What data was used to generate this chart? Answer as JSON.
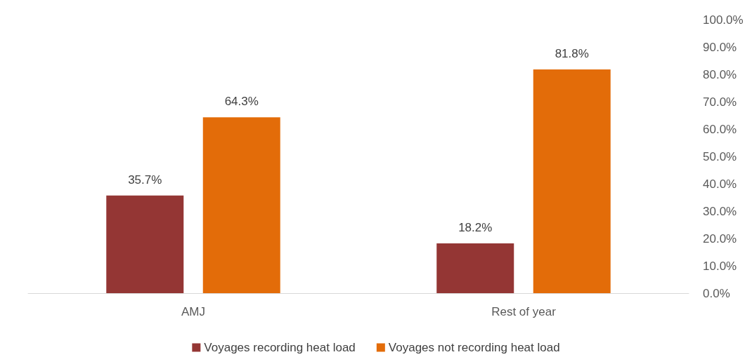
{
  "chart_data": {
    "type": "bar",
    "categories": [
      "AMJ",
      "Rest of year"
    ],
    "series": [
      {
        "name": "Voyages recording heat load",
        "color": "#943634",
        "values": [
          35.7,
          18.2
        ],
        "value_labels": [
          "35.7%",
          "18.2%"
        ]
      },
      {
        "name": "Voyages not recording heat load",
        "color": "#e36c09",
        "values": [
          64.3,
          81.8
        ],
        "value_labels": [
          "64.3%",
          "81.8%"
        ]
      }
    ],
    "ylim": [
      0,
      100
    ],
    "yticks": [
      {
        "value": 0,
        "label": "0.0%"
      },
      {
        "value": 10,
        "label": "10.0%"
      },
      {
        "value": 20,
        "label": "20.0%"
      },
      {
        "value": 30,
        "label": "30.0%"
      },
      {
        "value": 40,
        "label": "40.0%"
      },
      {
        "value": 50,
        "label": "50.0%"
      },
      {
        "value": 60,
        "label": "60.0%"
      },
      {
        "value": 70,
        "label": "70.0%"
      },
      {
        "value": 80,
        "label": "80.0%"
      },
      {
        "value": 90,
        "label": "90.0%"
      },
      {
        "value": 100,
        "label": "100.0%"
      }
    ],
    "grid": false,
    "legend": "bottom"
  }
}
